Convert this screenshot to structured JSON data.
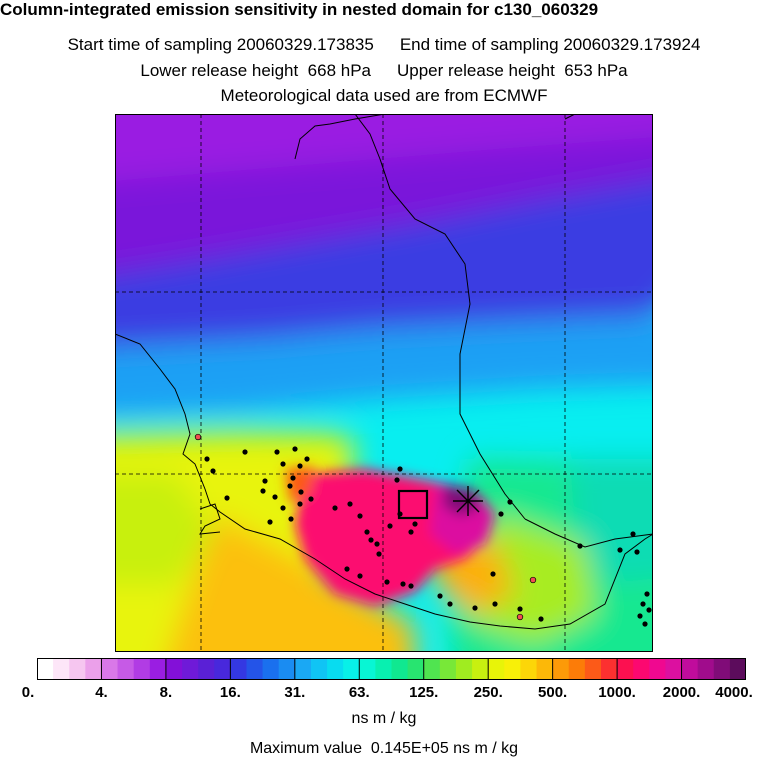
{
  "header": {
    "title": "Column-integrated emission sensitivity in nested domain for c130_060329",
    "start_label": "Start time of sampling",
    "start_value": "20060329.173835",
    "end_label": "End time of sampling",
    "end_value": "20060329.173924",
    "lower_label": "Lower release height",
    "lower_value": "668 hPa",
    "upper_label": "Upper release height",
    "upper_value": "653 hPa",
    "met_text": "Meteorological data used are from ECMWF"
  },
  "colorbar": {
    "tick_labels": [
      "0.",
      "4.",
      "8.",
      "16.",
      "31.",
      "63.",
      "125.",
      "250.",
      "500.",
      "1000.",
      "2000.",
      "4000."
    ],
    "colors": [
      "#ffffff",
      "#fde6f8",
      "#f6c6f0",
      "#eba0ea",
      "#d978e8",
      "#c65ae6",
      "#b13ce4",
      "#9a1ee2",
      "#8310d8",
      "#6f1ad8",
      "#5a20d6",
      "#4828dc",
      "#3438e2",
      "#2454e8",
      "#1a70ee",
      "#1a8cf2",
      "#1aa8f4",
      "#10c4f4",
      "#08dcf0",
      "#08f0e8",
      "#08f6d4",
      "#08f0b0",
      "#10e890",
      "#28e470",
      "#50e450",
      "#78e838",
      "#a0ec20",
      "#c8f010",
      "#e8f408",
      "#f8f008",
      "#fcd608",
      "#fcb808",
      "#fc9a08",
      "#fc7c08",
      "#fc5a18",
      "#fc3030",
      "#fc1050",
      "#fc0870",
      "#f00890",
      "#dc10a0",
      "#c00c9c",
      "#a00c8c",
      "#800c78",
      "#5c0c5c"
    ],
    "units": "ns m / kg"
  },
  "footer": {
    "max_label": "Maximum value",
    "max_value": "0.145E+05 ns m / kg"
  }
}
